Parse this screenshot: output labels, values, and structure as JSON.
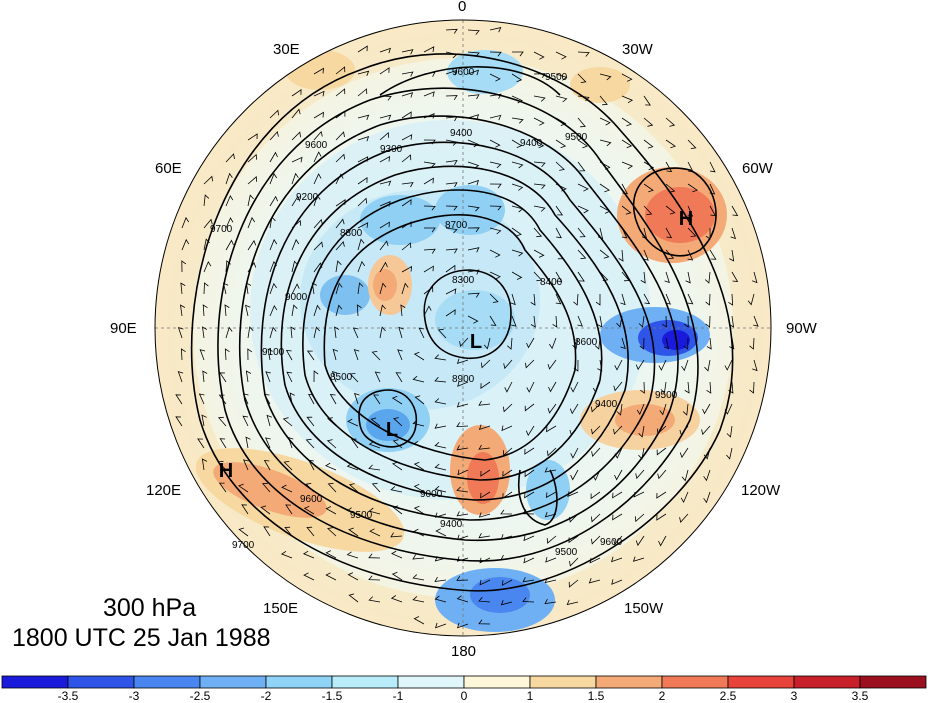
{
  "title": {
    "line1": "300 hPa",
    "line2": "1800 UTC 25 Jan 1988"
  },
  "longitude_labels": [
    "0",
    "30W",
    "60W",
    "90W",
    "120W",
    "150W",
    "180",
    "150E",
    "120E",
    "90E",
    "60E",
    "30E"
  ],
  "pressure_systems": [
    "H",
    "H",
    "L",
    "L"
  ],
  "contour_labels": [
    "9600",
    "9500",
    "9400",
    "9300",
    "9200",
    "9100",
    "9000",
    "8900",
    "8800",
    "8700",
    "8600",
    "8500",
    "8400",
    "8300",
    "9700"
  ],
  "colorbar": {
    "ticks": [
      "-3.5",
      "-3",
      "-2.5",
      "-2",
      "-1.5",
      "-1",
      "0",
      "1",
      "1.5",
      "2",
      "2.5",
      "3",
      "3.5"
    ],
    "colors": [
      "#1a1adb",
      "#2f55e8",
      "#4a86f0",
      "#6fb0f5",
      "#8fd3f7",
      "#b8ecf9",
      "#e0f6fb",
      "#fdf6d8",
      "#f6d8a0",
      "#f4aa76",
      "#f07a58",
      "#e8433a",
      "#c8202a",
      "#9b0f1e"
    ]
  }
}
